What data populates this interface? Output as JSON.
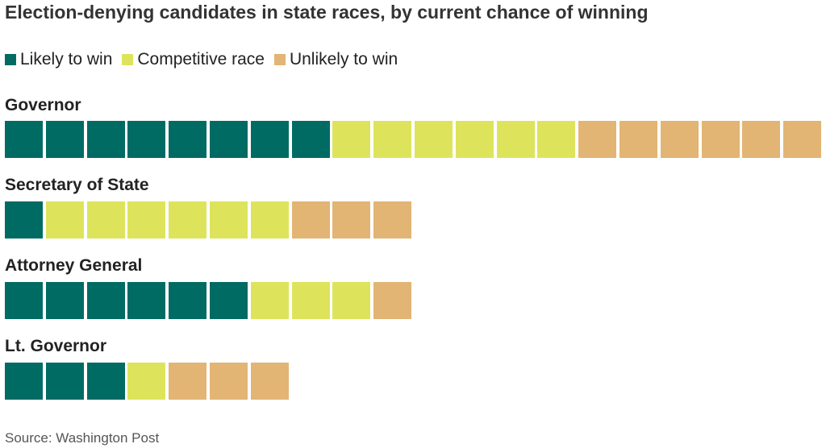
{
  "chart_data": {
    "type": "bar",
    "title": "Election-denying candidates in state races, by current chance of winning",
    "legend": [
      {
        "label": "Likely to win",
        "color": "#006b63"
      },
      {
        "label": "Competitive race",
        "color": "#dde45c"
      },
      {
        "label": "Unlikely to win",
        "color": "#e2b574"
      }
    ],
    "legend_position": "top-left",
    "unit_type": "waffle (one square per candidate)",
    "categories": [
      "Governor",
      "Secretary of State",
      "Attorney General",
      "Lt. Governor"
    ],
    "series": [
      {
        "name": "Likely to win",
        "values": [
          8,
          1,
          6,
          3
        ]
      },
      {
        "name": "Competitive race",
        "values": [
          6,
          6,
          3,
          1
        ]
      },
      {
        "name": "Unlikely to win",
        "values": [
          6,
          3,
          1,
          3
        ]
      }
    ],
    "grid": false
  },
  "source": "Source: Washington Post"
}
